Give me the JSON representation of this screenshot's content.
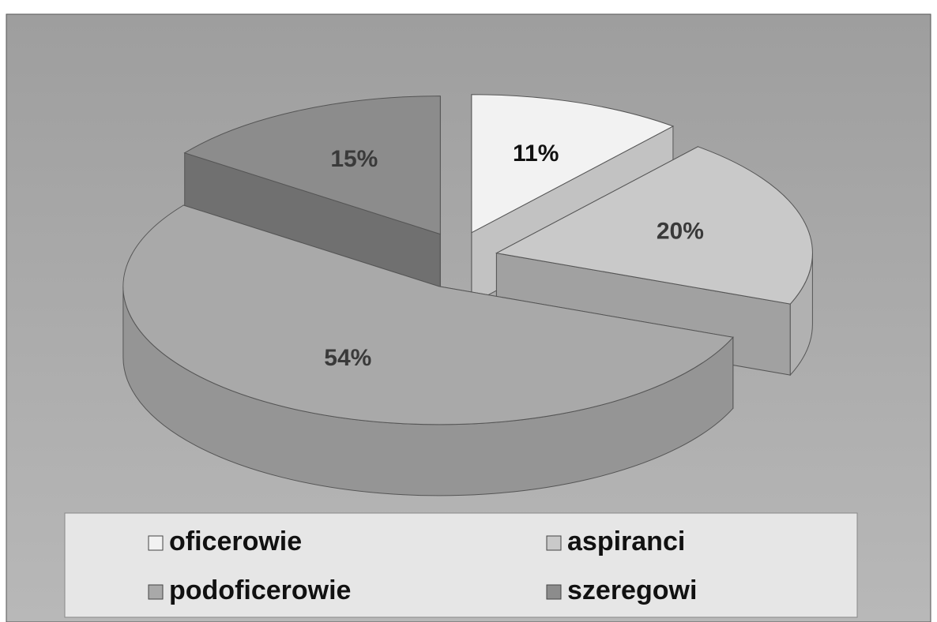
{
  "chart_data": {
    "type": "pie",
    "categories": [
      "oficerowie",
      "aspiranci",
      "podoficerowie",
      "szeregowi"
    ],
    "values": [
      11,
      20,
      54,
      15
    ],
    "value_labels": [
      "11%",
      "20%",
      "54%",
      "15%"
    ],
    "colors": [
      "#f2f2f2",
      "#c9c9c9",
      "#a9a9a9",
      "#8c8c8c"
    ],
    "legend": "bottom"
  }
}
